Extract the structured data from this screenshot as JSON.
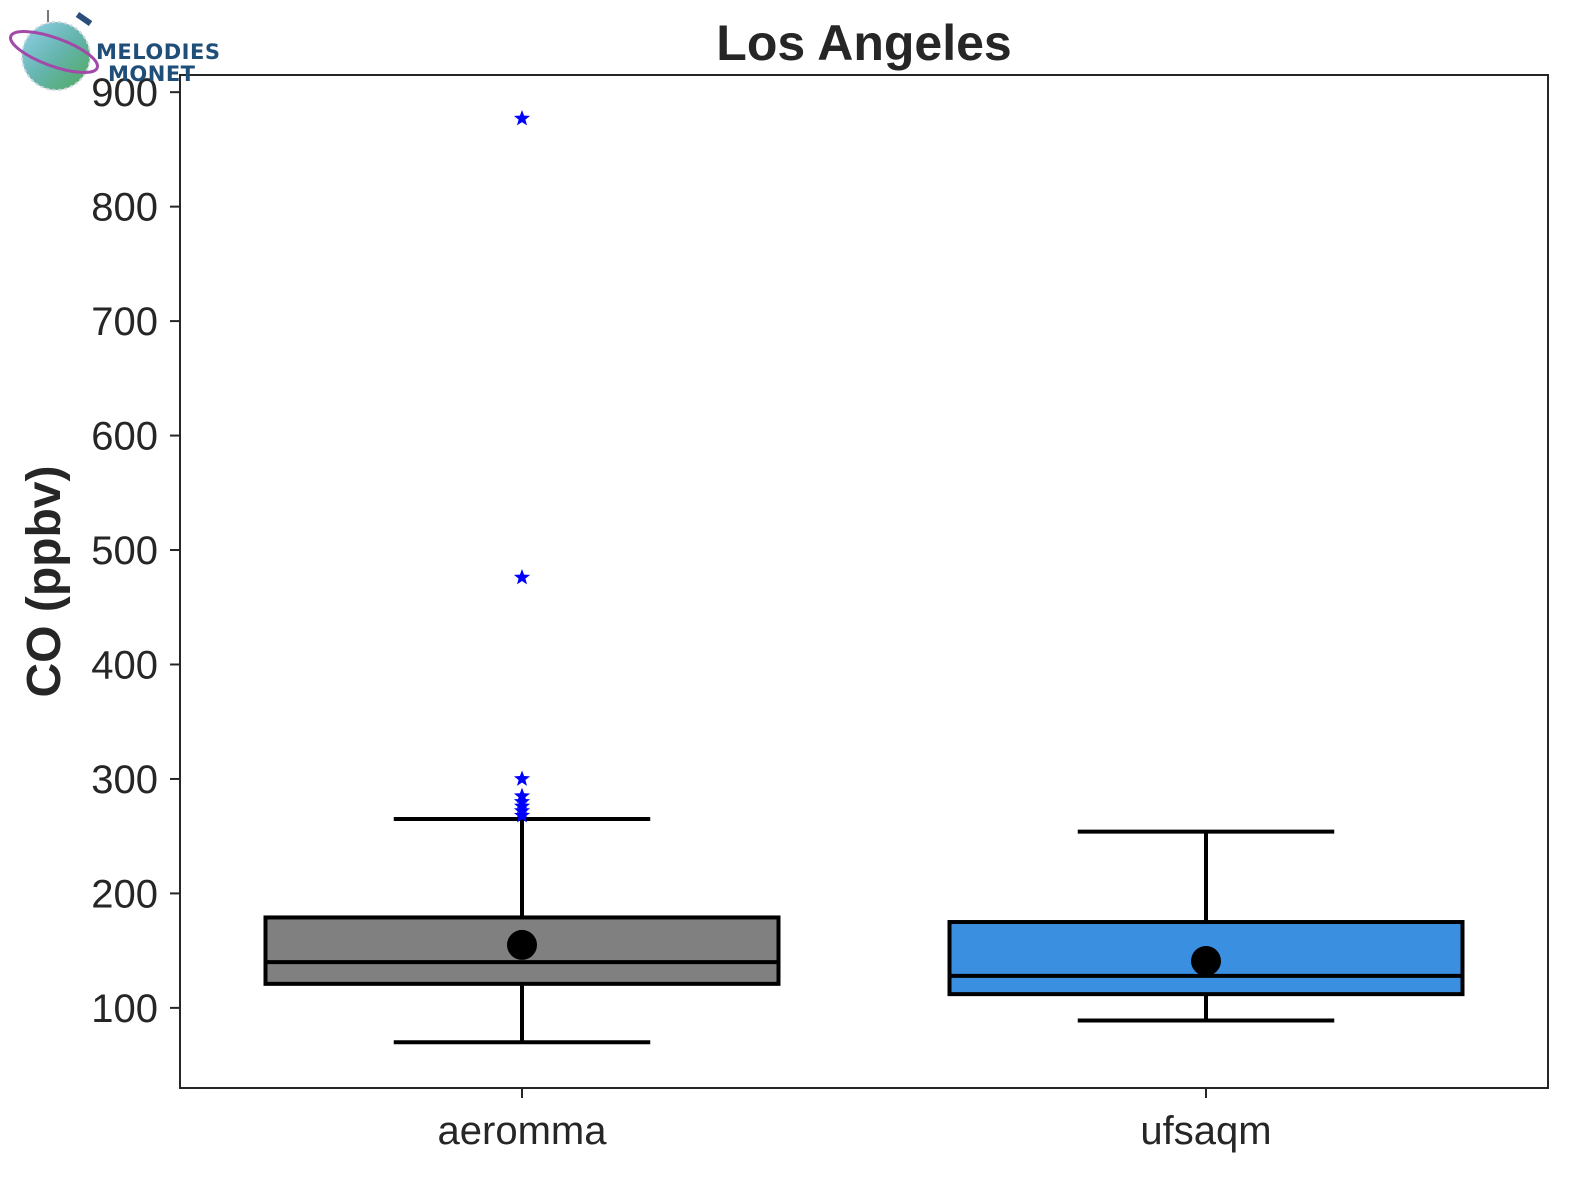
{
  "logo": {
    "line1": "MELODIES",
    "line2": "MONET"
  },
  "chart_data": {
    "type": "box",
    "title": "Los Angeles",
    "xlabel": "",
    "ylabel": "CO (ppbv)",
    "ylim": [
      30,
      915
    ],
    "yticks": [
      100,
      200,
      300,
      400,
      500,
      600,
      700,
      800,
      900
    ],
    "categories": [
      "aeromma",
      "ufsaqm"
    ],
    "series": [
      {
        "name": "aeromma",
        "color": "#808080",
        "whisker_low": 70,
        "q1": 121,
        "median": 140,
        "q3": 179,
        "whisker_high": 265,
        "mean": 155,
        "outliers": [
          877,
          476,
          300,
          285,
          280,
          276,
          272,
          268
        ]
      },
      {
        "name": "ufsaqm",
        "color": "#3a8fe0",
        "whisker_low": 89,
        "q1": 112,
        "median": 128,
        "q3": 175,
        "whisker_high": 254,
        "mean": 141,
        "outliers": []
      }
    ],
    "outlier_color": "#0000ff",
    "mean_color": "#000000"
  }
}
